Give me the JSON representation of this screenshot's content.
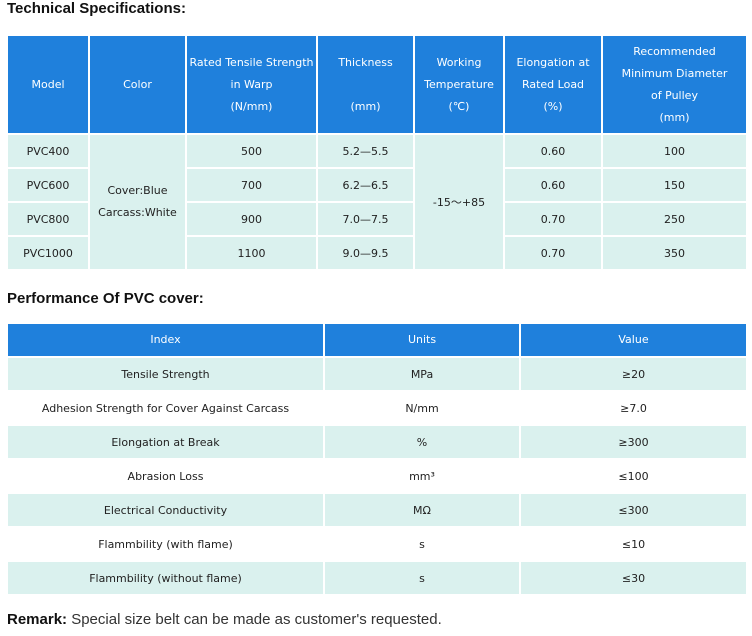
{
  "spec_title": "Technical Specifications:",
  "spec_headers": [
    "Model",
    "Color",
    "Rated Tensile Strength in Warp (N/mm)",
    "Thickness (mm)",
    "Working Temperature (℃)",
    "Elongation at Rated Load (%)",
    "Recommended Minimum Diameter of Pulley (mm)"
  ],
  "spec_header_lines": [
    [
      "Model"
    ],
    [
      "Color"
    ],
    [
      "Rated Tensile Strength",
      "in Warp",
      "(N/mm)"
    ],
    [
      "Thickness",
      "",
      "(mm)"
    ],
    [
      "Working",
      "Temperature",
      "(℃)"
    ],
    [
      "Elongation at",
      "Rated Load",
      "(%)"
    ],
    [
      "Recommended",
      "Minimum Diameter",
      "of Pulley",
      "(mm)"
    ]
  ],
  "color_cover": "Cover:Blue",
  "color_carcass": "Carcass:White",
  "working_temp": "-15～+85",
  "spec_rows": [
    {
      "model": "PVC400",
      "strength": "500",
      "thickness": "5.2—5.5",
      "elongation": "0.60",
      "pulley": "100"
    },
    {
      "model": "PVC600",
      "strength": "700",
      "thickness": "6.2—6.5",
      "elongation": "0.60",
      "pulley": "150"
    },
    {
      "model": "PVC800",
      "strength": "900",
      "thickness": "7.0—7.5",
      "elongation": "0.70",
      "pulley": "250"
    },
    {
      "model": "PVC1000",
      "strength": "1100",
      "thickness": "9.0—9.5",
      "elongation": "0.70",
      "pulley": "350"
    }
  ],
  "perf_title": "Performance Of PVC cover:",
  "perf_headers": [
    "Index",
    "Units",
    "Value"
  ],
  "perf_rows": [
    [
      "Tensile Strength",
      "MPa",
      "≥20"
    ],
    [
      "Adhesion Strength for Cover Against Carcass",
      "N/mm",
      "≥7.0"
    ],
    [
      "Elongation at Break",
      "%",
      "≥300"
    ],
    [
      "Abrasion Loss",
      "mm³",
      "≤100"
    ],
    [
      "Electrical Conductivity",
      "MΩ",
      "≤300"
    ],
    [
      "Flammbility (with flame)",
      "s",
      "≤10"
    ],
    [
      "Flammbility (without flame)",
      "s",
      "≤30"
    ]
  ],
  "remark_label": "Remark:",
  "remark_text": " Special size belt can be made as customer's requested."
}
